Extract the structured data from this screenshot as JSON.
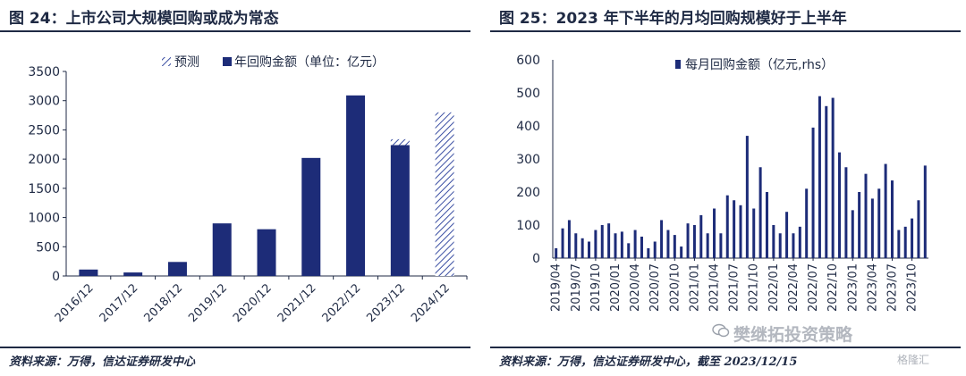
{
  "colors": {
    "bar": "#1d2c78",
    "hatch": "#3b4fa3",
    "text": "#1f2a44"
  },
  "left": {
    "title": "图 24：上市公司大规模回购或成为常态",
    "source": "资料来源：万得，信达证券研发中心",
    "legend": {
      "forecast": "预测",
      "annual": "年回购金额（单位：亿元）"
    }
  },
  "right": {
    "title": "图 25：2023 年下半年的月均回购规模好于上半年",
    "source": "资料来源：万得，信达证券研发中心，截至 2023/12/15",
    "legend": {
      "monthly": "每月回购金额（亿元,rhs）"
    }
  },
  "watermark": {
    "text_a": "樊继拓投资策略",
    "text_b": "格隆汇",
    "icon": "wechat-icon"
  },
  "chart_data": [
    {
      "type": "bar",
      "categories": [
        "2016/12",
        "2017/12",
        "2018/12",
        "2019/12",
        "2020/12",
        "2021/12",
        "2022/12",
        "2023/12",
        "2024/12"
      ],
      "series": [
        {
          "name": "年回购金额（单位：亿元）",
          "values": [
            110,
            60,
            240,
            900,
            800,
            2020,
            3090,
            2240,
            0
          ]
        },
        {
          "name": "预测",
          "values": [
            0,
            0,
            0,
            0,
            0,
            0,
            0,
            100,
            2800
          ]
        }
      ],
      "ylim": [
        0,
        3500
      ],
      "yticks": [
        0,
        500,
        1000,
        1500,
        2000,
        2500,
        3000,
        3500
      ],
      "grid": false,
      "legend_position": "top"
    },
    {
      "type": "bar",
      "start_month": "2019/04",
      "x_tick_labels": [
        "2019/04",
        "2019/07",
        "2019/10",
        "2020/01",
        "2020/04",
        "2020/07",
        "2020/10",
        "2021/01",
        "2021/04",
        "2021/07",
        "2021/10",
        "2022/01",
        "2022/04",
        "2022/07",
        "2022/10",
        "2023/01",
        "2023/04",
        "2023/07",
        "2023/10"
      ],
      "series": [
        {
          "name": "每月回购金额（亿元,rhs）",
          "values": [
            30,
            90,
            115,
            75,
            60,
            50,
            85,
            100,
            105,
            75,
            80,
            45,
            85,
            65,
            30,
            50,
            115,
            85,
            70,
            35,
            105,
            100,
            130,
            75,
            150,
            75,
            190,
            175,
            160,
            370,
            150,
            275,
            200,
            100,
            75,
            140,
            75,
            95,
            210,
            395,
            490,
            460,
            485,
            320,
            275,
            145,
            200,
            255,
            180,
            210,
            285,
            235,
            85,
            95,
            120,
            175,
            280
          ]
        }
      ],
      "ylim": [
        0,
        600
      ],
      "yticks": [
        0,
        100,
        200,
        300,
        400,
        500,
        600
      ],
      "grid": false,
      "legend_position": "top"
    }
  ]
}
